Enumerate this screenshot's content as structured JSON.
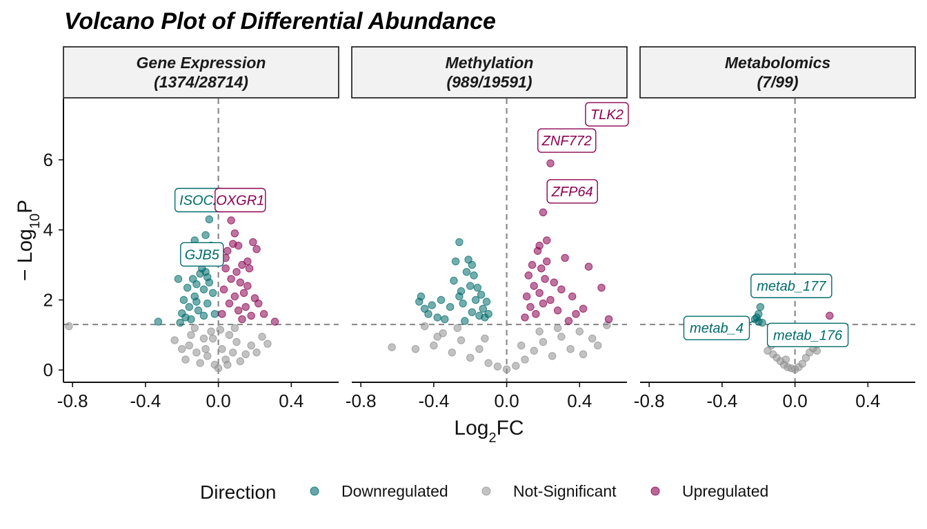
{
  "chart_data": {
    "type": "scatter",
    "title": "Volcano Plot of Differential Abundance",
    "xlabel_main": "Log",
    "xlabel_sub": "2",
    "xlabel_tail": "FC",
    "ylabel_prefix": "− Log",
    "ylabel_sub": "10",
    "ylabel_tail": "P",
    "xlim": [
      -0.85,
      0.66
    ],
    "ylim": [
      -0.35,
      7.75
    ],
    "x_ticks": [
      -0.8,
      -0.4,
      0.0,
      0.4
    ],
    "x_tick_labels": [
      "-0.8",
      "-0.4",
      "0.0",
      "0.4"
    ],
    "y_ticks": [
      0,
      2,
      4,
      6
    ],
    "y_tick_labels": [
      "0",
      "2",
      "4",
      "6"
    ],
    "p_threshold_line": 1.3,
    "fc_threshold_line": 0,
    "grid": false,
    "legend_position": "bottom",
    "legend": {
      "title": "Direction",
      "entries": [
        {
          "name": "Downregulated",
          "color": "#006b6b"
        },
        {
          "name": "Not-Significant",
          "color": "#9a9a9a"
        },
        {
          "name": "Upregulated",
          "color": "#8b0050"
        }
      ]
    },
    "colors": {
      "down": "#006b6b",
      "ns": "#8f8f8f",
      "up": "#8b0050"
    },
    "panels": [
      {
        "name": "Gene Expression",
        "count": "(1374/28714)",
        "points": {
          "down": [
            [
              -0.33,
              1.38
            ],
            [
              -0.21,
              1.35
            ],
            [
              -0.2,
              1.62
            ],
            [
              -0.19,
              2.0
            ],
            [
              -0.17,
              2.35
            ],
            [
              -0.16,
              1.8
            ],
            [
              -0.14,
              2.6
            ],
            [
              -0.13,
              2.1
            ],
            [
              -0.12,
              2.45
            ],
            [
              -0.11,
              1.7
            ],
            [
              -0.1,
              2.75
            ],
            [
              -0.09,
              3.2
            ],
            [
              -0.08,
              2.3
            ],
            [
              -0.07,
              2.8
            ],
            [
              -0.06,
              1.9
            ],
            [
              -0.05,
              2.5
            ],
            [
              -0.04,
              3.55
            ],
            [
              -0.03,
              2.2
            ],
            [
              -0.02,
              1.6
            ],
            [
              -0.22,
              2.6
            ],
            [
              -0.18,
              1.5
            ],
            [
              -0.15,
              1.45
            ],
            [
              -0.13,
              3.7
            ],
            [
              -0.11,
              3.3
            ],
            [
              -0.09,
              2.9
            ],
            [
              -0.07,
              3.85
            ],
            [
              -0.05,
              4.3
            ],
            [
              -0.12,
              1.95
            ],
            [
              -0.08,
              1.55
            ],
            [
              -0.06,
              2.65
            ]
          ],
          "up": [
            [
              0.02,
              1.6
            ],
            [
              0.03,
              2.3
            ],
            [
              0.04,
              2.9
            ],
            [
              0.05,
              3.4
            ],
            [
              0.06,
              1.9
            ],
            [
              0.07,
              2.6
            ],
            [
              0.08,
              3.6
            ],
            [
              0.09,
              2.1
            ],
            [
              0.1,
              2.8
            ],
            [
              0.11,
              1.7
            ],
            [
              0.12,
              2.5
            ],
            [
              0.13,
              3.0
            ],
            [
              0.14,
              2.2
            ],
            [
              0.15,
              1.8
            ],
            [
              0.16,
              2.4
            ],
            [
              0.17,
              2.9
            ],
            [
              0.18,
              1.55
            ],
            [
              0.19,
              3.65
            ],
            [
              0.21,
              3.45
            ],
            [
              0.22,
              1.9
            ],
            [
              0.25,
              1.6
            ],
            [
              0.31,
              1.38
            ],
            [
              0.07,
              4.27
            ],
            [
              0.09,
              3.9
            ],
            [
              0.11,
              3.55
            ],
            [
              0.04,
              3.2
            ],
            [
              0.2,
              2.05
            ],
            [
              0.13,
              1.45
            ],
            [
              0.16,
              3.1
            ]
          ],
          "ns": [
            [
              -0.82,
              1.25
            ],
            [
              -0.24,
              0.85
            ],
            [
              -0.2,
              0.6
            ],
            [
              -0.18,
              0.3
            ],
            [
              -0.15,
              1.0
            ],
            [
              -0.12,
              0.5
            ],
            [
              -0.1,
              0.2
            ],
            [
              -0.08,
              0.9
            ],
            [
              -0.06,
              0.4
            ],
            [
              -0.04,
              1.1
            ],
            [
              -0.02,
              0.15
            ],
            [
              0.0,
              0.05
            ],
            [
              0.02,
              0.6
            ],
            [
              0.04,
              0.3
            ],
            [
              0.06,
              1.0
            ],
            [
              0.08,
              0.5
            ],
            [
              0.1,
              0.8
            ],
            [
              0.12,
              0.25
            ],
            [
              0.15,
              0.45
            ],
            [
              0.18,
              0.7
            ],
            [
              0.21,
              0.5
            ],
            [
              0.24,
              0.95
            ],
            [
              0.27,
              0.75
            ],
            [
              -0.16,
              0.7
            ],
            [
              -0.03,
              0.9
            ],
            [
              0.01,
              1.15
            ],
            [
              0.05,
              0.15
            ],
            [
              -0.07,
              0.6
            ],
            [
              0.09,
              1.2
            ],
            [
              -0.13,
              1.2
            ]
          ]
        },
        "labels": [
          {
            "text": "ISOC2",
            "class": "down",
            "x": -0.1,
            "y": 4.85
          },
          {
            "text": "GJB5",
            "class": "down",
            "x": -0.09,
            "y": 3.3
          },
          {
            "text": "OXGR1",
            "class": "up",
            "x": 0.12,
            "y": 4.85
          }
        ]
      },
      {
        "name": "Methylation",
        "count": "(989/19591)",
        "points": {
          "down": [
            [
              -0.48,
              1.95
            ],
            [
              -0.47,
              2.1
            ],
            [
              -0.45,
              1.75
            ],
            [
              -0.43,
              1.6
            ],
            [
              -0.41,
              1.85
            ],
            [
              -0.38,
              1.5
            ],
            [
              -0.36,
              2.0
            ],
            [
              -0.34,
              1.45
            ],
            [
              -0.31,
              1.8
            ],
            [
              -0.29,
              2.55
            ],
            [
              -0.28,
              3.1
            ],
            [
              -0.26,
              3.65
            ],
            [
              -0.25,
              2.25
            ],
            [
              -0.24,
              1.9
            ],
            [
              -0.22,
              2.8
            ],
            [
              -0.21,
              3.15
            ],
            [
              -0.2,
              2.4
            ],
            [
              -0.19,
              1.65
            ],
            [
              -0.18,
              2.7
            ],
            [
              -0.17,
              2.0
            ],
            [
              -0.16,
              2.35
            ],
            [
              -0.15,
              1.55
            ],
            [
              -0.14,
              2.15
            ],
            [
              -0.13,
              1.75
            ],
            [
              -0.12,
              1.5
            ],
            [
              -0.11,
              1.95
            ],
            [
              -0.1,
              1.6
            ],
            [
              -0.19,
              3.0
            ],
            [
              -0.23,
              1.4
            ],
            [
              -0.26,
              2.1
            ]
          ],
          "up": [
            [
              0.1,
              1.5
            ],
            [
              0.11,
              2.1
            ],
            [
              0.12,
              2.7
            ],
            [
              0.13,
              1.8
            ],
            [
              0.14,
              3.0
            ],
            [
              0.15,
              2.4
            ],
            [
              0.16,
              1.6
            ],
            [
              0.17,
              3.4
            ],
            [
              0.18,
              2.2
            ],
            [
              0.19,
              2.9
            ],
            [
              0.2,
              1.9
            ],
            [
              0.21,
              2.6
            ],
            [
              0.22,
              3.1
            ],
            [
              0.24,
              2.0
            ],
            [
              0.26,
              2.5
            ],
            [
              0.28,
              1.7
            ],
            [
              0.3,
              2.3
            ],
            [
              0.32,
              3.2
            ],
            [
              0.34,
              1.4
            ],
            [
              0.36,
              2.1
            ],
            [
              0.38,
              1.6
            ],
            [
              0.42,
              1.75
            ],
            [
              0.45,
              2.95
            ],
            [
              0.52,
              2.35
            ],
            [
              0.56,
              1.45
            ],
            [
              0.24,
              5.9
            ],
            [
              0.2,
              4.5
            ],
            [
              0.22,
              3.7
            ],
            [
              0.58,
              7.45
            ],
            [
              0.18,
              3.55
            ]
          ],
          "ns": [
            [
              -0.63,
              0.65
            ],
            [
              -0.45,
              1.25
            ],
            [
              -0.4,
              0.7
            ],
            [
              -0.35,
              1.05
            ],
            [
              -0.3,
              0.5
            ],
            [
              -0.25,
              0.85
            ],
            [
              -0.2,
              0.35
            ],
            [
              -0.15,
              0.6
            ],
            [
              -0.1,
              0.2
            ],
            [
              -0.05,
              0.1
            ],
            [
              0.0,
              0.02
            ],
            [
              0.05,
              0.12
            ],
            [
              0.1,
              0.3
            ],
            [
              0.15,
              0.55
            ],
            [
              0.2,
              0.8
            ],
            [
              0.25,
              0.4
            ],
            [
              0.3,
              0.95
            ],
            [
              0.35,
              0.6
            ],
            [
              0.4,
              1.1
            ],
            [
              0.47,
              0.9
            ],
            [
              0.5,
              0.7
            ],
            [
              0.55,
              1.28
            ],
            [
              -0.5,
              0.6
            ],
            [
              -0.38,
              0.95
            ],
            [
              -0.27,
              1.2
            ],
            [
              -0.12,
              0.9
            ],
            [
              0.08,
              0.7
            ],
            [
              0.18,
              1.1
            ],
            [
              0.28,
              1.2
            ],
            [
              0.42,
              0.45
            ]
          ]
        },
        "labels": [
          {
            "text": "TLK2",
            "class": "up",
            "x": 0.55,
            "y": 7.3
          },
          {
            "text": "ZNF772",
            "class": "up",
            "x": 0.33,
            "y": 6.55
          },
          {
            "text": "ZFP64",
            "class": "up",
            "x": 0.36,
            "y": 5.1
          }
        ]
      },
      {
        "name": "Metabolomics",
        "count": "(7/99)",
        "points": {
          "down": [
            [
              -0.21,
              1.5
            ],
            [
              -0.2,
              1.6
            ],
            [
              -0.19,
              1.8
            ],
            [
              -0.2,
              1.38
            ],
            [
              -0.18,
              1.35
            ],
            [
              -0.22,
              1.45
            ]
          ],
          "up": [
            [
              0.19,
              1.55
            ]
          ],
          "ns": [
            [
              -0.15,
              0.55
            ],
            [
              -0.12,
              0.45
            ],
            [
              -0.1,
              0.35
            ],
            [
              -0.08,
              0.25
            ],
            [
              -0.06,
              0.15
            ],
            [
              -0.04,
              0.08
            ],
            [
              -0.02,
              0.05
            ],
            [
              0.0,
              0.02
            ],
            [
              0.02,
              0.08
            ],
            [
              0.04,
              0.18
            ],
            [
              0.06,
              0.35
            ],
            [
              0.08,
              0.5
            ],
            [
              0.1,
              0.62
            ],
            [
              -0.13,
              0.7
            ],
            [
              0.12,
              0.55
            ],
            [
              -0.05,
              0.3
            ]
          ]
        },
        "labels": [
          {
            "text": "metab_177",
            "class": "down",
            "x": -0.02,
            "y": 2.4
          },
          {
            "text": "metab_4",
            "class": "down",
            "x": -0.43,
            "y": 1.2
          },
          {
            "text": "metab_176",
            "class": "down",
            "x": 0.07,
            "y": 1.0
          }
        ],
        "connectors": [
          [
            -0.32,
            1.2,
            -0.2,
            1.45
          ]
        ]
      }
    ]
  }
}
